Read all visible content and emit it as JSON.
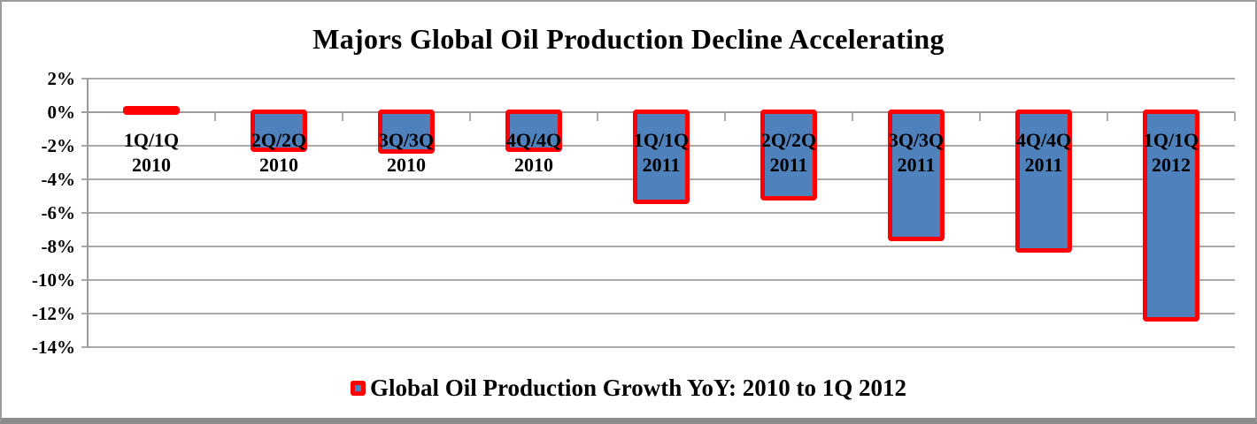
{
  "chart_data": {
    "type": "bar",
    "title": "Majors Global Oil Production Decline Accelerating",
    "legend": "Global Oil Production Growth YoY: 2010 to 1Q 2012",
    "legend_position": "bottom-center",
    "categories": [
      {
        "period": "1Q/1Q",
        "year": "2010"
      },
      {
        "period": "2Q/2Q",
        "year": "2010"
      },
      {
        "period": "3Q/3Q",
        "year": "2010"
      },
      {
        "period": "4Q/4Q",
        "year": "2010"
      },
      {
        "period": "1Q/1Q",
        "year": "2011"
      },
      {
        "period": "2Q/2Q",
        "year": "2011"
      },
      {
        "period": "3Q/3Q",
        "year": "2011"
      },
      {
        "period": "4Q/4Q",
        "year": "2011"
      },
      {
        "period": "1Q/1Q",
        "year": "2012"
      }
    ],
    "values": [
      0.2,
      -2.2,
      -2.3,
      -2.2,
      -5.3,
      -5.1,
      -7.5,
      -8.2,
      -12.3
    ],
    "value_unit": "%",
    "y_ticks": [
      "2%",
      "0%",
      "-2%",
      "-4%",
      "-6%",
      "-8%",
      "-10%",
      "-12%",
      "-14%"
    ],
    "ylim": [
      -14,
      2
    ],
    "grid": true,
    "xlabel": "",
    "ylabel": "",
    "colors": {
      "bar_fill": "#4f81bd",
      "bar_border": "#ff0000",
      "gridline": "#a9a9a9",
      "axis": "#9b9b9b",
      "text": "#000000",
      "background": "#ffffff",
      "frame_border": "#8b8b8b"
    }
  }
}
